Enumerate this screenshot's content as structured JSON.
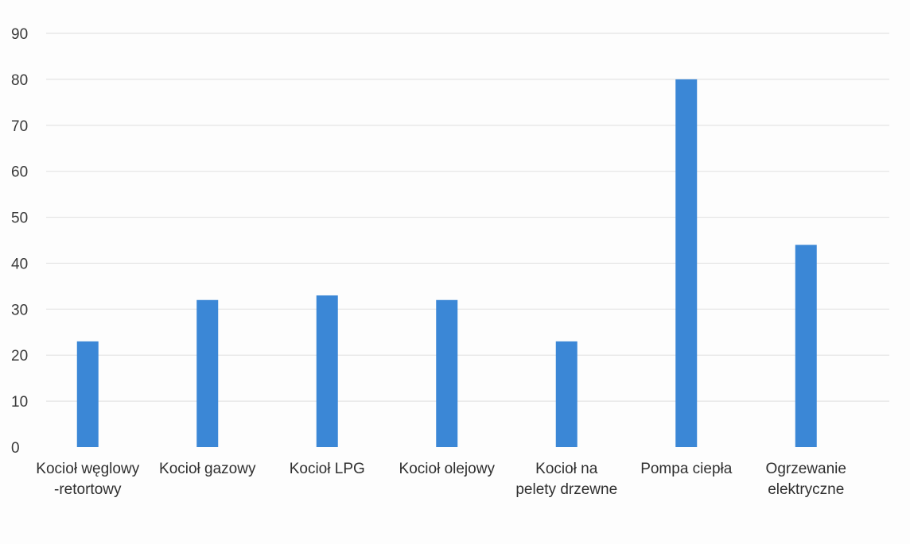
{
  "chart_data": {
    "type": "bar",
    "title": "",
    "xlabel": "",
    "ylabel": "",
    "ylim": [
      0,
      90
    ],
    "yticks": [
      0,
      10,
      20,
      30,
      40,
      50,
      60,
      70,
      80,
      90
    ],
    "grid": true,
    "legend": "none",
    "bar_color": "#3b87d6",
    "categories": [
      "Kocioł węglowy -retortowy",
      "Kocioł gazowy",
      "Kocioł LPG",
      "Kocioł olejowy",
      "Kocioł na pelety drzewne",
      "Pompa ciepła",
      "Ogrzewanie elektryczne"
    ],
    "category_lines": [
      [
        "Kocioł węglowy",
        "-retortowy"
      ],
      [
        "Kocioł gazowy"
      ],
      [
        "Kocioł LPG"
      ],
      [
        "Kocioł olejowy"
      ],
      [
        "Kocioł na",
        "pelety drzewne"
      ],
      [
        "Pompa ciepła"
      ],
      [
        "Ogrzewanie",
        "elektryczne"
      ]
    ],
    "values": [
      23,
      32,
      33,
      32,
      23,
      80,
      44
    ]
  }
}
